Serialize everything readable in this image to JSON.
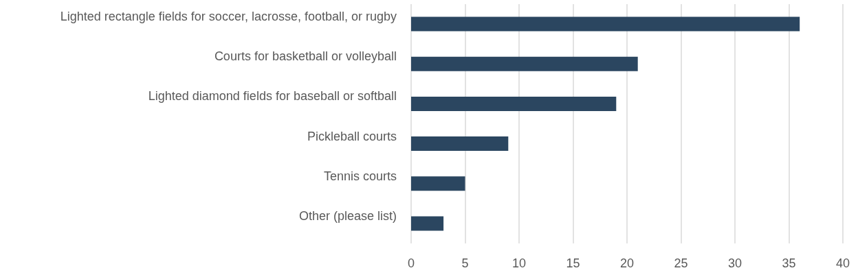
{
  "chart_data": {
    "type": "bar",
    "orientation": "horizontal",
    "categories": [
      "Lighted rectangle fields for soccer, lacrosse, football, or rugby",
      "Courts for basketball or volleyball",
      "Lighted diamond fields for baseball or softball",
      "Pickleball courts",
      "Tennis courts",
      "Other (please list)"
    ],
    "values": [
      36,
      21,
      19,
      9,
      5,
      3
    ],
    "color": "#2b4660",
    "xlim": [
      0,
      40
    ],
    "xticks": [
      0,
      5,
      10,
      15,
      20,
      25,
      30,
      35,
      40
    ],
    "grid": "x"
  }
}
